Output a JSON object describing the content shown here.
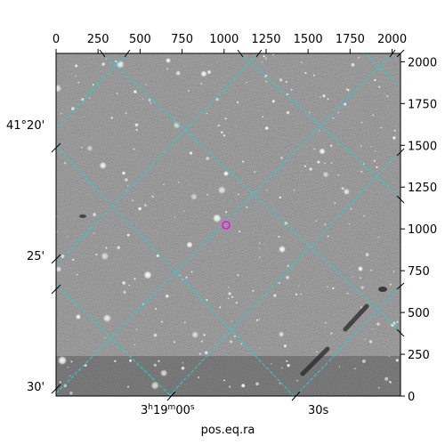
{
  "figure": {
    "x_axis_label": "pos.eq.ra",
    "top_ticks": [
      "0",
      "250",
      "500",
      "750",
      "1000",
      "1250",
      "1500",
      "1750",
      "2000"
    ],
    "right_ticks": [
      "0",
      "250",
      "500",
      "750",
      "1000",
      "1250",
      "1500",
      "1750",
      "2000"
    ],
    "left_ticks": [
      "41°20'",
      "25'",
      "30'"
    ],
    "bottom_ticks": [
      "3h19m00s",
      "30s"
    ],
    "grid_color": "#1fd6d6",
    "marker_color": "#ff00ff",
    "image_description_icon": "star-field-image"
  }
}
